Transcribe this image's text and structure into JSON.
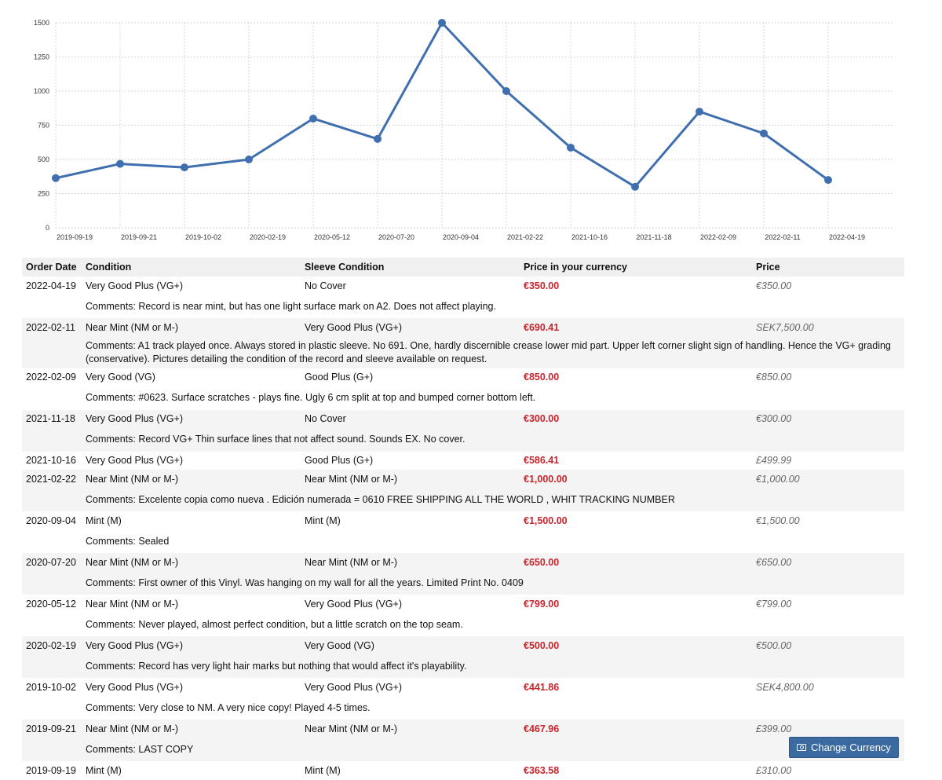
{
  "chart_data": {
    "type": "line",
    "x": [
      "2019-09-19",
      "2019-09-21",
      "2019-10-02",
      "2020-02-19",
      "2020-05-12",
      "2020-07-20",
      "2020-09-04",
      "2021-02-22",
      "2021-10-16",
      "2021-11-18",
      "2022-02-09",
      "2022-02-11",
      "2022-04-19"
    ],
    "series": [
      {
        "values": [
          363.58,
          467.96,
          441.86,
          500,
          799,
          650,
          1500,
          1000,
          586.41,
          300,
          850,
          690.41,
          350
        ]
      }
    ],
    "ylim": [
      0,
      1500
    ],
    "yticks": [
      0,
      250,
      500,
      750,
      1000,
      1250,
      1500
    ],
    "grid": true,
    "color": "#3f6faf"
  },
  "table": {
    "headers": [
      "Order Date",
      "Condition",
      "Sleeve Condition",
      "Price in your currency",
      "Price"
    ],
    "rows": [
      {
        "date": "2022-04-19",
        "condition": "Very Good Plus (VG+)",
        "sleeve": "No Cover",
        "price_local": "€350.00",
        "price": "€350.00",
        "comment": "Comments: Record is near mint, but has one light surface mark on A2. Does not affect playing."
      },
      {
        "date": "2022-02-11",
        "condition": "Near Mint (NM or M-)",
        "sleeve": "Very Good Plus (VG+)",
        "price_local": "€690.41",
        "price": "SEK7,500.00",
        "comment": "Comments: A1 track played once. Always stored in plastic sleeve. No 691. One, hardly discernible crease lower mid part. Upper left corner slight sign of handling. Hence the VG+ grading (conservative). Pictures detailing the condition of the record and sleeve available on request."
      },
      {
        "date": "2022-02-09",
        "condition": "Very Good (VG)",
        "sleeve": "Good Plus (G+)",
        "price_local": "€850.00",
        "price": "€850.00",
        "comment": "Comments: #0623. Surface scratches - plays fine. Ugly 6 cm split at top and bumped corner bottom left."
      },
      {
        "date": "2021-11-18",
        "condition": "Very Good Plus (VG+)",
        "sleeve": "No Cover",
        "price_local": "€300.00",
        "price": "€300.00",
        "comment": "Comments: Record VG+ Thin surface lines that not affect sound. Sounds EX. No cover."
      },
      {
        "date": "2021-10-16",
        "condition": "Very Good Plus (VG+)",
        "sleeve": "Good Plus (G+)",
        "price_local": "€586.41",
        "price": "£499.99",
        "comment": ""
      },
      {
        "date": "2021-02-22",
        "condition": "Near Mint (NM or M-)",
        "sleeve": "Near Mint (NM or M-)",
        "price_local": "€1,000.00",
        "price": "€1,000.00",
        "comment": "Comments: Excelente copia como nueva . Edición numerada = 0610 FREE SHIPPING ALL THE WORLD , WHIT TRACKING NUMBER"
      },
      {
        "date": "2020-09-04",
        "condition": "Mint (M)",
        "sleeve": "Mint (M)",
        "price_local": "€1,500.00",
        "price": "€1,500.00",
        "comment": "Comments: Sealed"
      },
      {
        "date": "2020-07-20",
        "condition": "Near Mint (NM or M-)",
        "sleeve": "Near Mint (NM or M-)",
        "price_local": "€650.00",
        "price": "€650.00",
        "comment": "Comments: First owner of this Vinyl. Was hanging on my wall for all the years. Limited Print No. 0409"
      },
      {
        "date": "2020-05-12",
        "condition": "Near Mint (NM or M-)",
        "sleeve": "Very Good Plus (VG+)",
        "price_local": "€799.00",
        "price": "€799.00",
        "comment": "Comments: Never played, almost perfect condition, but a little scratch on the top seam."
      },
      {
        "date": "2020-02-19",
        "condition": "Very Good Plus (VG+)",
        "sleeve": "Very Good (VG)",
        "price_local": "€500.00",
        "price": "€500.00",
        "comment": "Comments: Record has very light hair marks but nothing that would affect it's playability."
      },
      {
        "date": "2019-10-02",
        "condition": "Very Good Plus (VG+)",
        "sleeve": "Very Good Plus (VG+)",
        "price_local": "€441.86",
        "price": "SEK4,800.00",
        "comment": "Comments: Very close to NM. A very nice copy! Played 4-5 times."
      },
      {
        "date": "2019-09-21",
        "condition": "Near Mint (NM or M-)",
        "sleeve": "Near Mint (NM or M-)",
        "price_local": "€467.96",
        "price": "£399.00",
        "comment": "Comments: LAST COPY"
      },
      {
        "date": "2019-09-19",
        "condition": "Mint (M)",
        "sleeve": "Mint (M)",
        "price_local": "€363.58",
        "price": "£310.00",
        "comment": ""
      }
    ]
  },
  "change_currency": {
    "label": "Change Currency",
    "icon": "money-icon"
  }
}
